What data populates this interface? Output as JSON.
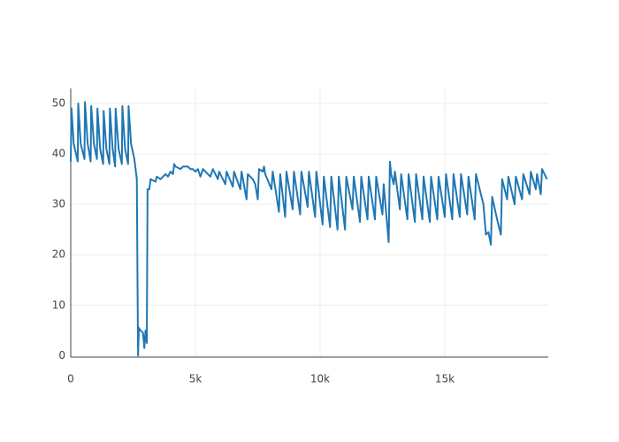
{
  "chart_data": {
    "type": "line",
    "x": [
      0,
      30,
      120,
      280,
      300,
      400,
      550,
      570,
      680,
      800,
      820,
      930,
      1050,
      1070,
      1180,
      1300,
      1320,
      1430,
      1550,
      1570,
      1680,
      1780,
      1800,
      1920,
      2050,
      2070,
      2180,
      2300,
      2320,
      2420,
      2550,
      2650,
      2680,
      2700,
      2730,
      2800,
      2900,
      2950,
      3000,
      3050,
      3080,
      3150,
      3200,
      3400,
      3450,
      3600,
      3700,
      3800,
      3900,
      4000,
      4100,
      4150,
      4200,
      4400,
      4500,
      4700,
      4800,
      4900,
      5000,
      5100,
      5200,
      5300,
      5500,
      5600,
      5700,
      5900,
      5950,
      6200,
      6250,
      6500,
      6550,
      6800,
      6850,
      7050,
      7100,
      7300,
      7400,
      7500,
      7550,
      7700,
      7750,
      7800,
      8050,
      8100,
      8350,
      8400,
      8600,
      8650,
      8900,
      8950,
      9200,
      9250,
      9500,
      9550,
      9800,
      9850,
      10100,
      10150,
      10400,
      10450,
      10700,
      10750,
      11000,
      11050,
      11300,
      11350,
      11600,
      11650,
      11900,
      11950,
      12200,
      12250,
      12500,
      12550,
      12750,
      12800,
      12850,
      12950,
      13000,
      13200,
      13250,
      13500,
      13550,
      13800,
      13850,
      14100,
      14150,
      14400,
      14450,
      14700,
      14750,
      15000,
      15050,
      15300,
      15350,
      15600,
      15650,
      15900,
      15950,
      16200,
      16250,
      16500,
      16550,
      16650,
      16750,
      16850,
      16900,
      17100,
      17250,
      17300,
      17500,
      17550,
      17800,
      17850,
      18100,
      18150,
      18400,
      18450,
      18650,
      18700,
      18850,
      18900,
      19100
    ],
    "series": [
      {
        "color": "#1f77b4",
        "values": [
          38.5,
          49,
          42,
          38.5,
          50,
          42,
          39,
          50.3,
          42,
          38.5,
          49.5,
          42,
          39,
          49,
          41,
          38,
          48.5,
          41,
          38,
          49,
          41,
          37.5,
          49,
          41,
          38,
          49.5,
          41,
          38,
          49.5,
          42,
          39,
          35,
          13,
          0,
          5.5,
          5,
          4.5,
          1.5,
          5,
          2.5,
          33,
          33,
          35,
          34.5,
          35.5,
          35,
          35.5,
          36,
          35.5,
          36.5,
          36,
          38,
          37.5,
          37,
          37.5,
          37.5,
          37,
          37,
          36.5,
          37,
          35.5,
          37,
          36,
          35.5,
          37,
          35,
          36.5,
          34,
          36.5,
          33.5,
          36.5,
          33,
          36.5,
          31,
          36,
          35,
          34,
          31,
          37,
          36.5,
          37.5,
          36,
          33,
          36.5,
          28.5,
          36,
          27.5,
          36.5,
          29,
          36.5,
          28,
          36.5,
          29.5,
          36.5,
          27.5,
          36.5,
          26,
          35.5,
          25.5,
          35.5,
          25,
          35.5,
          25,
          35.5,
          29,
          35.5,
          26.5,
          35.5,
          27,
          35.5,
          27,
          35.5,
          28,
          34,
          22.5,
          38.5,
          36,
          34,
          36.5,
          29,
          36,
          27,
          36,
          26.5,
          36,
          27,
          35.5,
          26.5,
          35.5,
          27,
          35.5,
          27.5,
          36,
          27,
          36,
          27.5,
          36,
          28,
          35.5,
          27,
          36,
          31,
          30,
          24,
          24.5,
          22,
          31.5,
          27,
          24,
          35,
          31,
          35.5,
          30,
          35.5,
          31,
          36,
          32,
          36.5,
          33,
          36,
          32,
          37,
          35
        ]
      }
    ],
    "xlim": [
      0,
      19150
    ],
    "ylim": [
      -0.3,
      53
    ],
    "xticks": [
      0,
      {
        "value": 5000,
        "label": "5k"
      },
      {
        "value": 10000,
        "label": "10k"
      },
      {
        "value": 15000,
        "label": "15k"
      }
    ],
    "yticks": [
      0,
      10,
      20,
      30,
      40,
      50
    ],
    "grid": true
  }
}
